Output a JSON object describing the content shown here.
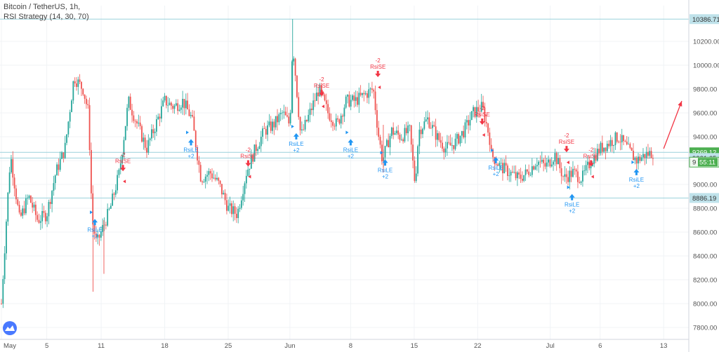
{
  "header": {
    "symbol_line": "Bitcoin / TetherUS, 1h,",
    "strategy_line": "RSI Strategy (14, 30, 70)"
  },
  "colors": {
    "up": "#26a69a",
    "down": "#ef5350",
    "level_line": "#9ad1dc",
    "long_signal": "#2196f3",
    "short_signal": "#f23645",
    "projection": "#f23645",
    "grid": "#f0f3f6",
    "last_price_tag": "#4caf50",
    "level_tag": "#bfe2ea"
  },
  "chart_data": {
    "type": "candlestick",
    "x_tick_labels": [
      "May",
      "5",
      "11",
      "18",
      "25",
      "Jun",
      "8",
      "15",
      "22",
      "Jul",
      "6",
      "13"
    ],
    "y_ticks": [
      7800,
      8000,
      8200,
      8400,
      8600,
      8800,
      9000,
      9200,
      9400,
      9600,
      9800,
      10000,
      10200
    ],
    "ylim": [
      7700,
      10500
    ],
    "x_range_days": [
      0,
      75
    ],
    "horizontal_levels": [
      10386.71,
      9269.12,
      9221.65,
      8886.19
    ],
    "last_price": 9269.12,
    "countdown": "55:11",
    "countdown_prefix": "9",
    "price_path": [
      {
        "day": 0,
        "price": 8000
      },
      {
        "day": 0.5,
        "price": 8650
      },
      {
        "day": 1,
        "price": 9250
      },
      {
        "day": 2,
        "price": 8700
      },
      {
        "day": 3,
        "price": 8900
      },
      {
        "day": 4,
        "price": 8700
      },
      {
        "day": 5,
        "price": 8750
      },
      {
        "day": 6,
        "price": 9100
      },
      {
        "day": 7,
        "price": 9300
      },
      {
        "day": 8,
        "price": 9900
      },
      {
        "day": 9,
        "price": 9800
      },
      {
        "day": 9.6,
        "price": 9600
      },
      {
        "day": 10,
        "price": 8700
      },
      {
        "day": 10.5,
        "price": 8500
      },
      {
        "day": 11,
        "price": 8600
      },
      {
        "day": 12,
        "price": 8800
      },
      {
        "day": 13,
        "price": 9100
      },
      {
        "day": 14,
        "price": 9700
      },
      {
        "day": 15,
        "price": 9500
      },
      {
        "day": 16,
        "price": 9300
      },
      {
        "day": 17,
        "price": 9500
      },
      {
        "day": 18,
        "price": 9700
      },
      {
        "day": 19,
        "price": 9650
      },
      {
        "day": 20,
        "price": 9700
      },
      {
        "day": 21,
        "price": 9550
      },
      {
        "day": 22,
        "price": 9050
      },
      {
        "day": 23,
        "price": 9100
      },
      {
        "day": 24,
        "price": 9000
      },
      {
        "day": 25,
        "price": 8800
      },
      {
        "day": 26,
        "price": 8750
      },
      {
        "day": 27,
        "price": 9100
      },
      {
        "day": 28,
        "price": 9300
      },
      {
        "day": 29,
        "price": 9450
      },
      {
        "day": 30,
        "price": 9500
      },
      {
        "day": 31,
        "price": 9600
      },
      {
        "day": 31.8,
        "price": 9500
      },
      {
        "day": 32.1,
        "price": 10200
      },
      {
        "day": 32.6,
        "price": 9750
      },
      {
        "day": 33,
        "price": 9400
      },
      {
        "day": 34,
        "price": 9600
      },
      {
        "day": 35,
        "price": 9800
      },
      {
        "day": 36,
        "price": 9600
      },
      {
        "day": 37,
        "price": 9500
      },
      {
        "day": 38,
        "price": 9700
      },
      {
        "day": 39,
        "price": 9700
      },
      {
        "day": 40,
        "price": 9750
      },
      {
        "day": 41,
        "price": 9800
      },
      {
        "day": 41.5,
        "price": 9450
      },
      {
        "day": 42,
        "price": 9200
      },
      {
        "day": 43,
        "price": 9450
      },
      {
        "day": 44,
        "price": 9400
      },
      {
        "day": 45,
        "price": 9450
      },
      {
        "day": 45.6,
        "price": 9000
      },
      {
        "day": 46,
        "price": 9450
      },
      {
        "day": 47,
        "price": 9550
      },
      {
        "day": 48,
        "price": 9400
      },
      {
        "day": 49,
        "price": 9300
      },
      {
        "day": 50,
        "price": 9350
      },
      {
        "day": 51,
        "price": 9450
      },
      {
        "day": 52,
        "price": 9600
      },
      {
        "day": 53,
        "price": 9650
      },
      {
        "day": 53.8,
        "price": 9400
      },
      {
        "day": 54,
        "price": 9250
      },
      {
        "day": 55,
        "price": 9150
      },
      {
        "day": 56,
        "price": 9100
      },
      {
        "day": 57,
        "price": 9050
      },
      {
        "day": 58,
        "price": 9100
      },
      {
        "day": 59,
        "price": 9200
      },
      {
        "day": 60,
        "price": 9150
      },
      {
        "day": 61,
        "price": 9250
      },
      {
        "day": 62,
        "price": 9050
      },
      {
        "day": 63,
        "price": 9100
      },
      {
        "day": 64,
        "price": 9050
      },
      {
        "day": 65,
        "price": 9200
      },
      {
        "day": 66,
        "price": 9300
      },
      {
        "day": 67,
        "price": 9350
      },
      {
        "day": 68,
        "price": 9400
      },
      {
        "day": 69,
        "price": 9300
      },
      {
        "day": 70,
        "price": 9200
      },
      {
        "day": 71,
        "price": 9250
      },
      {
        "day": 72,
        "price": 9270
      }
    ],
    "signals": [
      {
        "type": "long",
        "label": "RsiLE",
        "qty": "+2",
        "day": 10.3,
        "price": 8710
      },
      {
        "type": "short",
        "label": "RsiSE",
        "qty": "-2",
        "day": 13.4,
        "price": 9110
      },
      {
        "type": "long",
        "label": "RsiLE",
        "qty": "+2",
        "day": 20.9,
        "price": 9380
      },
      {
        "type": "short",
        "label": "RsiSE",
        "qty": "-2",
        "day": 27.2,
        "price": 9150
      },
      {
        "type": "long",
        "label": "RsiLE",
        "qty": "+2",
        "day": 32.5,
        "price": 9430
      },
      {
        "type": "short",
        "label": "RsiSE",
        "qty": "-2",
        "day": 35.3,
        "price": 9740
      },
      {
        "type": "long",
        "label": "RsiLE",
        "qty": "+2",
        "day": 38.5,
        "price": 9380
      },
      {
        "type": "short",
        "label": "RsiSE",
        "qty": "-2",
        "day": 41.5,
        "price": 9900
      },
      {
        "type": "long",
        "label": "RsiLE",
        "qty": "+2",
        "day": 42.3,
        "price": 9210
      },
      {
        "type": "short",
        "label": "RsiSE",
        "qty": "-2",
        "day": 53.0,
        "price": 9500
      },
      {
        "type": "long",
        "label": "RsiLE",
        "qty": "+2",
        "day": 54.5,
        "price": 9230
      },
      {
        "type": "short",
        "label": "RsiSE",
        "qty": "-2",
        "day": 62.3,
        "price": 9270
      },
      {
        "type": "long",
        "label": "RsiLE",
        "qty": "+2",
        "day": 62.9,
        "price": 8920
      },
      {
        "type": "short",
        "label": "RsiSE",
        "qty": "-2",
        "day": 65.0,
        "price": 9150
      },
      {
        "type": "long",
        "label": "RsiLE",
        "qty": "+2",
        "day": 70.0,
        "price": 9130
      }
    ],
    "projection": {
      "from": {
        "day": 73,
        "price": 9300
      },
      "to": {
        "day": 75,
        "price": 9700
      }
    }
  }
}
